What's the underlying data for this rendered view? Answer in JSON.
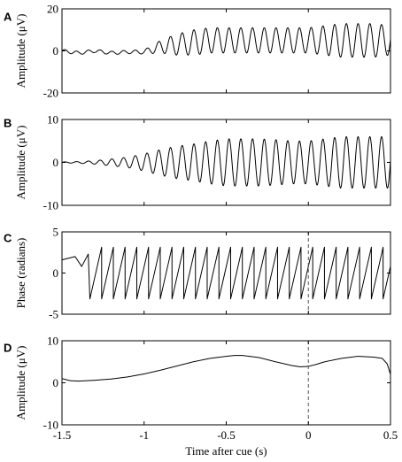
{
  "chart_data": {
    "type": "line",
    "shared_xlabel": "Time after cue (s)",
    "xlim": [
      -1.5,
      0.5
    ],
    "xticks": [
      -1.5,
      -1,
      -0.5,
      0,
      0.5
    ],
    "xtick_labels": [
      "-1.5",
      "-1",
      "-0.5",
      "0",
      "0.5"
    ],
    "panels": [
      {
        "letter": "A",
        "ylabel": "Amplitude (μV)",
        "ylim": [
          -20,
          20
        ],
        "yticks": [
          -20,
          0,
          20
        ],
        "ytick_labels": [
          "-20",
          "0",
          "20"
        ],
        "cue_line": false,
        "x": [
          -1.5,
          -1.4,
          -1.3,
          -1.2,
          -1.1,
          -1.0,
          -0.9,
          -0.8,
          -0.7,
          -0.6,
          -0.5,
          -0.4,
          -0.3,
          -0.2,
          -0.1,
          0.0,
          0.1,
          0.2,
          0.3,
          0.4,
          0.5
        ],
        "y": [
          0,
          -1,
          0,
          -1,
          -0.5,
          -0.5,
          2,
          3,
          4,
          5,
          5,
          5,
          5,
          5,
          5,
          5,
          5,
          5,
          5,
          5,
          5
        ],
        "oscillation_amplitude": [
          0.8,
          0.8,
          0.8,
          0.8,
          0.8,
          1,
          3,
          5,
          6,
          6,
          6,
          6,
          6,
          6,
          6,
          6,
          7,
          8,
          8,
          8,
          7
        ],
        "oscillation_period_s": 0.0714
      },
      {
        "letter": "B",
        "ylabel": "Amplitude (μV)",
        "ylim": [
          -10,
          10
        ],
        "yticks": [
          -10,
          0,
          10
        ],
        "ytick_labels": [
          "-10",
          "0",
          "10"
        ],
        "cue_line": false,
        "x": [
          -1.5,
          -1.4,
          -1.3,
          -1.2,
          -1.1,
          -1.0,
          -0.9,
          -0.8,
          -0.7,
          -0.6,
          -0.5,
          -0.4,
          -0.3,
          -0.2,
          -0.1,
          0.0,
          0.1,
          0.2,
          0.3,
          0.4,
          0.5
        ],
        "y": [
          0,
          0,
          0,
          0,
          0,
          0,
          0,
          0,
          0,
          0,
          0,
          0,
          0,
          0,
          0,
          0,
          0,
          0,
          0,
          0,
          0
        ],
        "oscillation_amplitude": [
          0.1,
          0.2,
          0.4,
          0.8,
          1.2,
          2,
          3,
          3.8,
          4.3,
          5,
          5.5,
          5.5,
          5.5,
          5.3,
          5,
          5,
          5.5,
          6,
          6,
          6,
          6
        ],
        "oscillation_period_s": 0.0714
      },
      {
        "letter": "C",
        "ylabel": "Phase (radians)",
        "ylim": [
          -5,
          5
        ],
        "yticks": [
          -5,
          0,
          5
        ],
        "ytick_labels": [
          "-5",
          "0",
          "5"
        ],
        "cue_line": true,
        "sawtooth": {
          "start_x": -1.33,
          "period_s": 0.0714,
          "min": -3.14,
          "max": 3.14,
          "lead_in": [
            [
              -1.5,
              1.6
            ],
            [
              -1.42,
              2.0
            ],
            [
              -1.38,
              0.8
            ],
            [
              -1.34,
              2.3
            ]
          ]
        }
      },
      {
        "letter": "D",
        "ylabel": "Amplitude (μV)",
        "ylim": [
          -10,
          10
        ],
        "yticks": [
          -10,
          0,
          10
        ],
        "ytick_labels": [
          "-10",
          "0",
          "10"
        ],
        "cue_line": true,
        "x": [
          -1.5,
          -1.45,
          -1.4,
          -1.3,
          -1.2,
          -1.1,
          -1.0,
          -0.9,
          -0.8,
          -0.7,
          -0.6,
          -0.5,
          -0.45,
          -0.4,
          -0.3,
          -0.2,
          -0.1,
          -0.05,
          0.0,
          0.05,
          0.1,
          0.2,
          0.3,
          0.4,
          0.45,
          0.48,
          0.5
        ],
        "y": [
          1,
          0.5,
          0.4,
          0.6,
          0.9,
          1.4,
          2.1,
          3.0,
          4.0,
          5.0,
          5.8,
          6.3,
          6.5,
          6.5,
          6.0,
          5.0,
          4.1,
          3.8,
          3.9,
          4.4,
          5.0,
          5.8,
          6.3,
          6.1,
          5.8,
          4.5,
          2.0
        ]
      }
    ]
  }
}
